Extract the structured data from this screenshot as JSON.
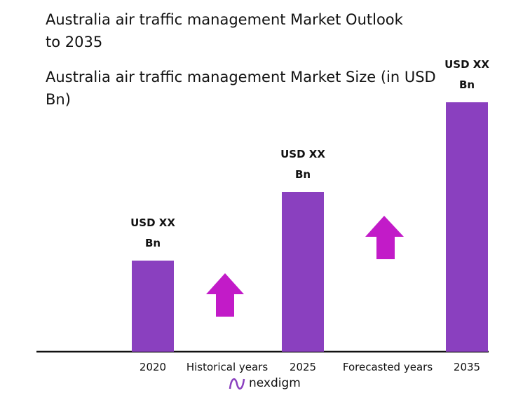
{
  "chart_data": {
    "type": "bar",
    "title": "Australia air traffic management Market Outlook to 2035",
    "subtitle": "Australia air traffic management Market Size (in USD Bn)",
    "categories": [
      "2020",
      "2025",
      "2035"
    ],
    "values": [
      130,
      228,
      356
    ],
    "value_labels": [
      "USD XX Bn",
      "USD XX Bn",
      "USD XX Bn"
    ],
    "color": "#8a40bf",
    "annotations": [
      "Historical years",
      "Forecasted years"
    ],
    "brand": "nexdigm"
  }
}
